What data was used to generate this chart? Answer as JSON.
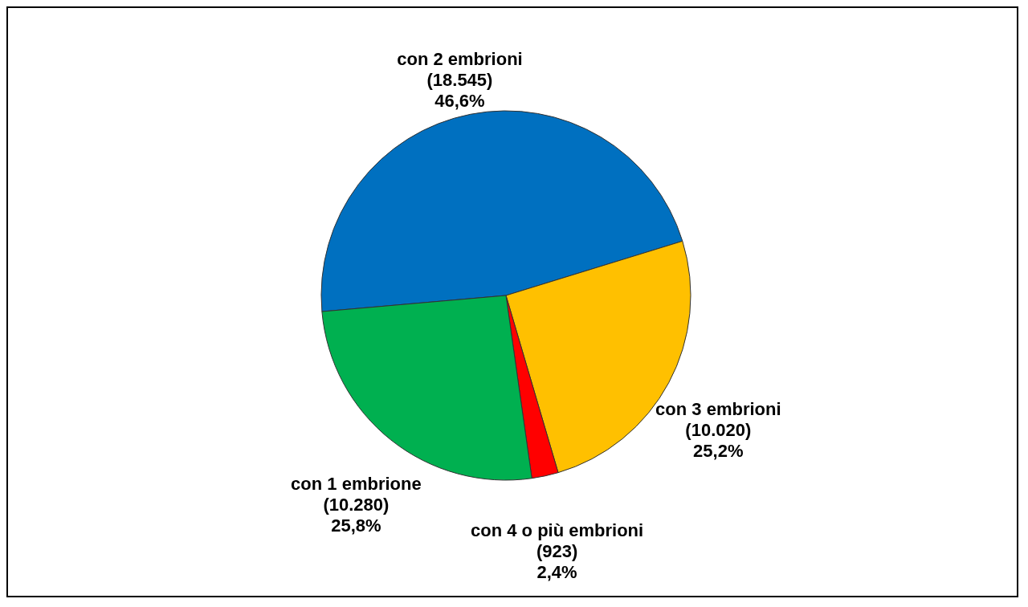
{
  "chart_data": {
    "type": "pie",
    "categories": [
      "con 2 embrioni",
      "con 3 embrioni",
      "con 4 o più embrioni",
      "con 1 embrione"
    ],
    "values": [
      18545,
      10020,
      923,
      10280
    ],
    "colors": [
      "#0070c0",
      "#ffc000",
      "#ff0000",
      "#00b050"
    ],
    "value_labels": [
      "(18.545)\n46,6%",
      "(10.020)\n25,2%",
      "(923)\n2,4%",
      "(10.280)\n25,8%"
    ]
  }
}
